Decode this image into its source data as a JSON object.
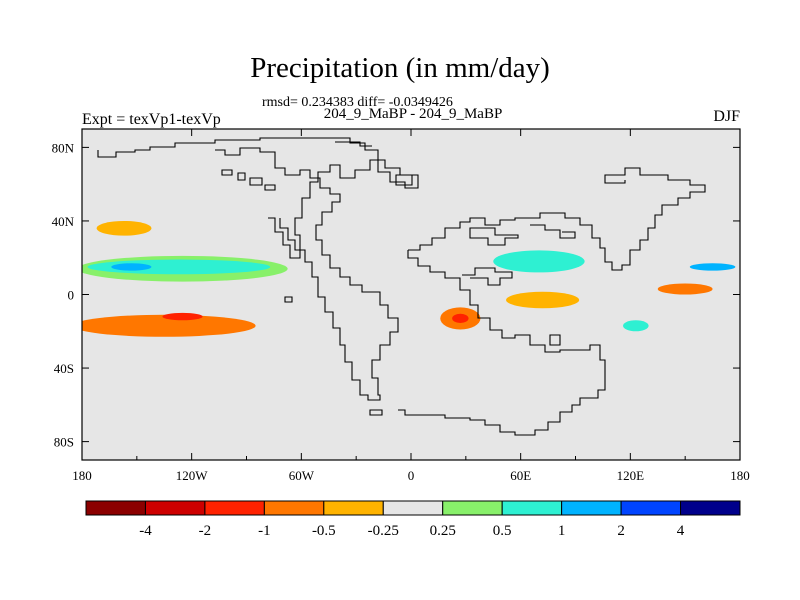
{
  "chart_data": {
    "type": "heatmap",
    "title": "Precipitation (in mm/day)",
    "stats_text": "rmsd= 0.234383 diff= -0.0349426",
    "run_label": "204_9_MaBP - 204_9_MaBP",
    "left_label": "Expt = texVp1-texVp",
    "season": "DJF",
    "xlim": [
      -180,
      180
    ],
    "ylim": [
      -90,
      90
    ],
    "x_ticks": [
      {
        "value": -180,
        "label": "180"
      },
      {
        "value": -120,
        "label": "120W"
      },
      {
        "value": -60,
        "label": "60W"
      },
      {
        "value": 0,
        "label": "0"
      },
      {
        "value": 60,
        "label": "60E"
      },
      {
        "value": 120,
        "label": "120E"
      },
      {
        "value": 180,
        "label": "180"
      }
    ],
    "y_ticks": [
      {
        "value": 80,
        "label": "80N"
      },
      {
        "value": 40,
        "label": "40N"
      },
      {
        "value": 0,
        "label": "0"
      },
      {
        "value": -40,
        "label": "40S"
      },
      {
        "value": -80,
        "label": "80S"
      }
    ],
    "colorbar": {
      "colors": [
        "#8b0000",
        "#cd0000",
        "#ff2200",
        "#ff7700",
        "#ffb300",
        "#e6e6e6",
        "#88f06a",
        "#2ef0d2",
        "#00b3ff",
        "#0044ff",
        "#00008b"
      ],
      "boundaries": [
        "-4",
        "-2",
        "-1",
        "-0.5",
        "-0.25",
        "0.25",
        "0.5",
        "1",
        "2",
        "4"
      ]
    },
    "background_color": "#e6e6e6",
    "anomalies": [
      {
        "region": "north-pacific-tropics",
        "lon": -127,
        "lat": 15,
        "w": 100,
        "h": 8,
        "level": "0.5 to 1"
      },
      {
        "region": "north-pacific-core",
        "lon": -153,
        "lat": 15,
        "w": 22,
        "h": 4,
        "level": "1 to 2"
      },
      {
        "region": "north-pacific-outer",
        "lon": -125,
        "lat": 14,
        "w": 115,
        "h": 14,
        "level": "0.25 to 0.5"
      },
      {
        "region": "south-pacific-band",
        "lon": -135,
        "lat": -17,
        "w": 100,
        "h": 12,
        "level": "-1 to -0.5"
      },
      {
        "region": "south-pacific-core",
        "lon": -125,
        "lat": -12,
        "w": 22,
        "h": 4,
        "level": "-2 to -1"
      },
      {
        "region": "north-pacific-mid",
        "lon": -157,
        "lat": 36,
        "w": 30,
        "h": 8,
        "level": "-0.5 to -0.25"
      },
      {
        "region": "africa-east",
        "lon": 27,
        "lat": -13,
        "w": 22,
        "h": 12,
        "level": "-1 to -0.5"
      },
      {
        "region": "africa-east-core",
        "lon": 27,
        "lat": -13,
        "w": 9,
        "h": 5,
        "level": "-2 to -1"
      },
      {
        "region": "arabian-sea",
        "lon": 70,
        "lat": 18,
        "w": 50,
        "h": 12,
        "level": "0.5 to 1"
      },
      {
        "region": "indian-ocean-east",
        "lon": 72,
        "lat": -3,
        "w": 40,
        "h": 9,
        "level": "-0.5 to -0.25"
      },
      {
        "region": "maritime-continent",
        "lon": 123,
        "lat": -17,
        "w": 14,
        "h": 6,
        "level": "0.5 to 1"
      },
      {
        "region": "west-pacific-north",
        "lon": 165,
        "lat": 15,
        "w": 25,
        "h": 4,
        "level": "1 to 2"
      },
      {
        "region": "west-pacific-south",
        "lon": 150,
        "lat": 3,
        "w": 30,
        "h": 6,
        "level": "-1 to -0.5"
      }
    ]
  }
}
